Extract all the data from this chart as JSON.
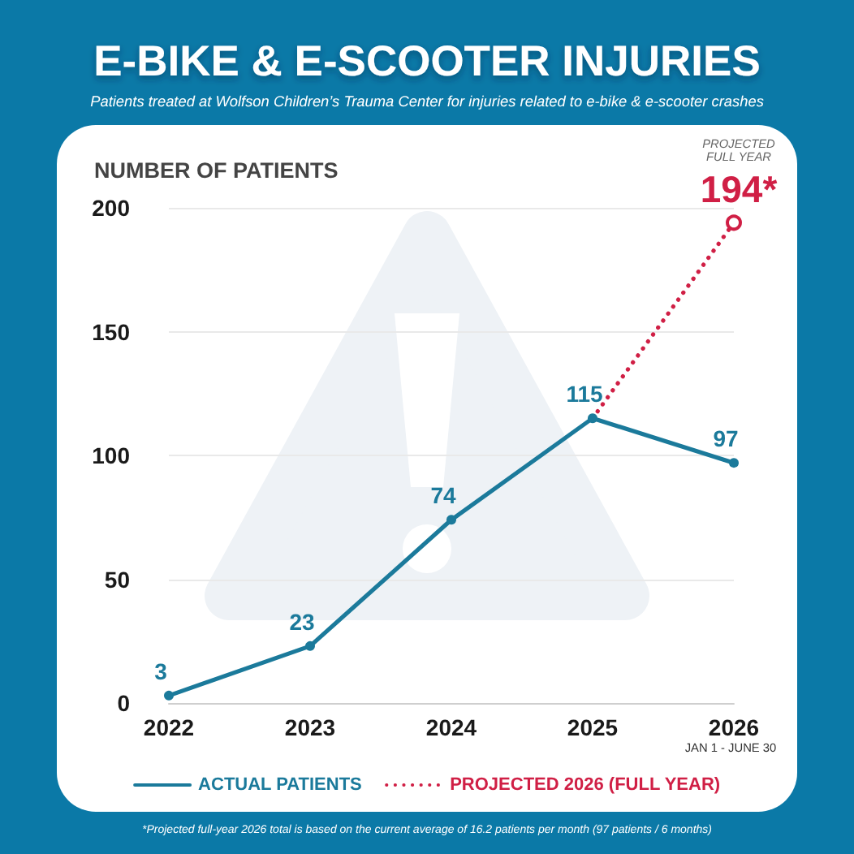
{
  "chart_data": {
    "type": "line",
    "title": "E-BIKE & E-SCOOTER INJURIES",
    "subtitle": "Patients treated at Wolfson Children’s Trauma Center for injuries related to e-bike & e-scooter crashes",
    "ylabel": "NUMBER OF PATIENTS",
    "categories": [
      "2022",
      "2023",
      "2024",
      "2025",
      "2026"
    ],
    "series": [
      {
        "name": "ACTUAL PATIENTS",
        "color": "#1b7a9b",
        "values": [
          3,
          23,
          74,
          115,
          97
        ],
        "line_style": "solid",
        "value_labels": [
          "3",
          "23",
          "74",
          "115",
          "97"
        ]
      },
      {
        "name": "PROJECTED 2026 (FULL YEAR)",
        "color": "#d01f45",
        "values": [
          null,
          null,
          null,
          115,
          194
        ],
        "line_style": "dotted",
        "value_labels": [
          null,
          null,
          null,
          null,
          "194*"
        ]
      }
    ],
    "marker": "circle",
    "ylim": [
      0,
      200
    ],
    "yticks": [
      0,
      50,
      100,
      150,
      200
    ],
    "grid": "y",
    "legend": "bottom",
    "annotations": [
      "PROJECTED FULL YEAR",
      "JAN 1 - JUNE 30",
      "*Projected full-year 2026 total is based on the current average of 16.2 patients per month (97 patients / 6 months)"
    ]
  }
}
